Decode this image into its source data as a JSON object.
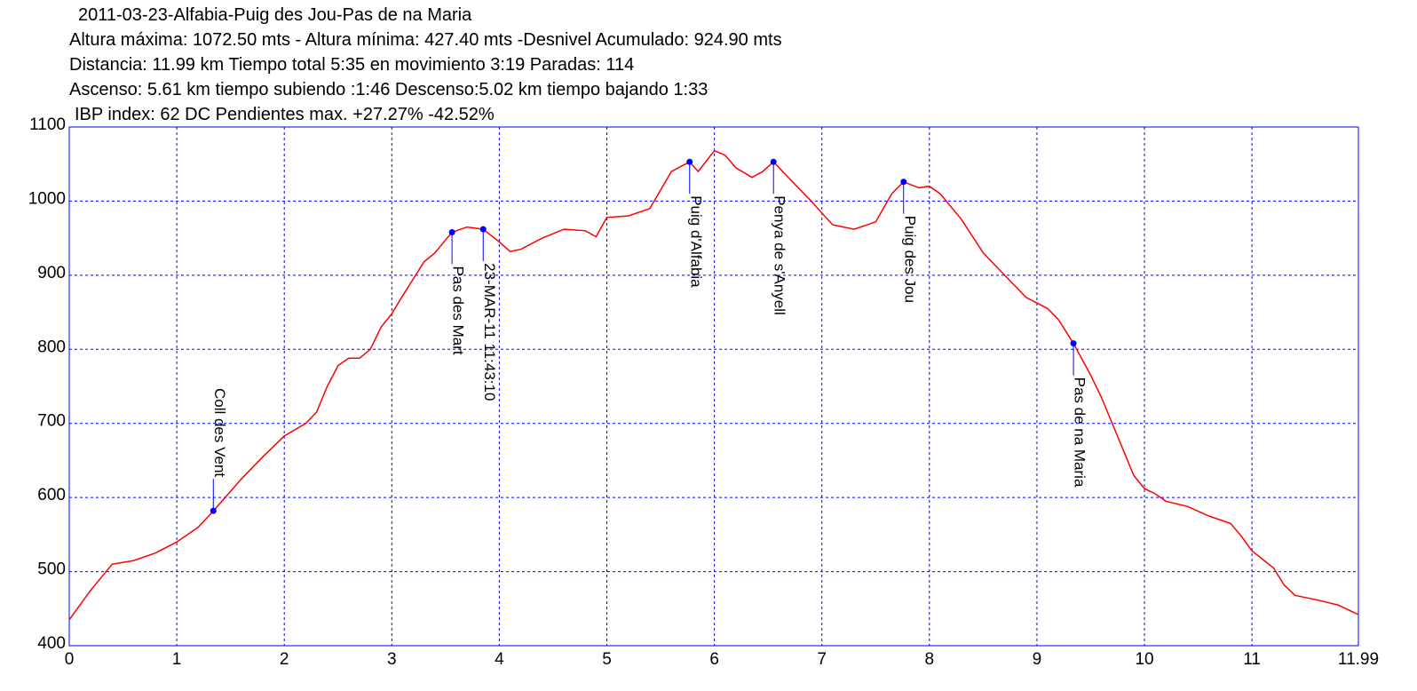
{
  "chart_data": {
    "type": "line",
    "title": "2011-03-23-Alfabia-Puig des Jou-Pas de na Maria",
    "subtitles": [
      "Altura máxima: 1072.50 mts - Altura mínima: 427.40 mts -Desnivel Acumulado: 924.90 mts",
      "Distancia: 11.99 km  Tiempo total 5:35  en movimiento 3:19 Paradas: 114",
      "Ascenso: 5.61 km  tiempo subiendo :1:46  Descenso:5.02 km tiempo bajando 1:33",
      "IBP index: 62 DC Pendientes max. +27.27%  -42.52%"
    ],
    "xlim": [
      0,
      11.99
    ],
    "xticks": [
      0,
      1,
      2,
      3,
      4,
      5,
      6,
      7,
      8,
      9,
      10,
      11,
      11.99
    ],
    "ylim": [
      400,
      1100
    ],
    "yticks": [
      400,
      500,
      600,
      700,
      800,
      900,
      1000,
      1100
    ],
    "grid": true,
    "color": "#ff0000",
    "frame_color": "#0000ff",
    "x": [
      0,
      0.2,
      0.4,
      0.6,
      0.8,
      1.0,
      1.2,
      1.34,
      1.6,
      1.8,
      2.0,
      2.2,
      2.3,
      2.4,
      2.5,
      2.6,
      2.7,
      2.8,
      2.9,
      3.0,
      3.1,
      3.2,
      3.3,
      3.4,
      3.56,
      3.7,
      3.85,
      4.0,
      4.1,
      4.2,
      4.4,
      4.6,
      4.8,
      4.9,
      5.0,
      5.2,
      5.4,
      5.6,
      5.77,
      5.85,
      6.0,
      6.1,
      6.2,
      6.35,
      6.45,
      6.55,
      6.7,
      6.9,
      7.1,
      7.3,
      7.5,
      7.65,
      7.76,
      7.9,
      8.0,
      8.1,
      8.3,
      8.5,
      8.7,
      8.9,
      9.1,
      9.2,
      9.34,
      9.5,
      9.6,
      9.8,
      9.9,
      10.0,
      10.1,
      10.2,
      10.4,
      10.6,
      10.8,
      10.9,
      11.0,
      11.2,
      11.3,
      11.4,
      11.6,
      11.8,
      11.99
    ],
    "values": [
      435,
      475,
      510,
      515,
      525,
      540,
      560,
      582,
      625,
      655,
      683,
      700,
      715,
      750,
      778,
      788,
      788,
      800,
      830,
      848,
      872,
      895,
      918,
      930,
      958,
      965,
      962,
      945,
      932,
      935,
      950,
      962,
      960,
      952,
      978,
      980,
      990,
      1040,
      1053,
      1040,
      1068,
      1062,
      1045,
      1032,
      1040,
      1053,
      1030,
      1000,
      968,
      962,
      972,
      1010,
      1026,
      1018,
      1020,
      1010,
      975,
      930,
      900,
      870,
      855,
      840,
      808,
      765,
      735,
      665,
      630,
      612,
      605,
      595,
      588,
      575,
      565,
      548,
      528,
      505,
      482,
      468,
      462,
      455,
      442
    ],
    "waypoints": [
      {
        "label": "Coll des Vent",
        "x": 1.34,
        "y": 582,
        "label_side": "above"
      },
      {
        "label": "Pas des Mart",
        "x": 3.56,
        "y": 958,
        "label_side": "below"
      },
      {
        "label": "23-MAR-11 11:43:10",
        "x": 3.85,
        "y": 962,
        "label_side": "below"
      },
      {
        "label": "Puig d'Alfabia",
        "x": 5.77,
        "y": 1053,
        "label_side": "below"
      },
      {
        "label": "Penya de s'Anyell",
        "x": 6.55,
        "y": 1053,
        "label_side": "below"
      },
      {
        "label": "Puig des Jou",
        "x": 7.76,
        "y": 1026,
        "label_side": "below"
      },
      {
        "label": "Pas de na Maria",
        "x": 9.34,
        "y": 808,
        "label_side": "below"
      }
    ],
    "waypoint_color": "#0000ff"
  }
}
